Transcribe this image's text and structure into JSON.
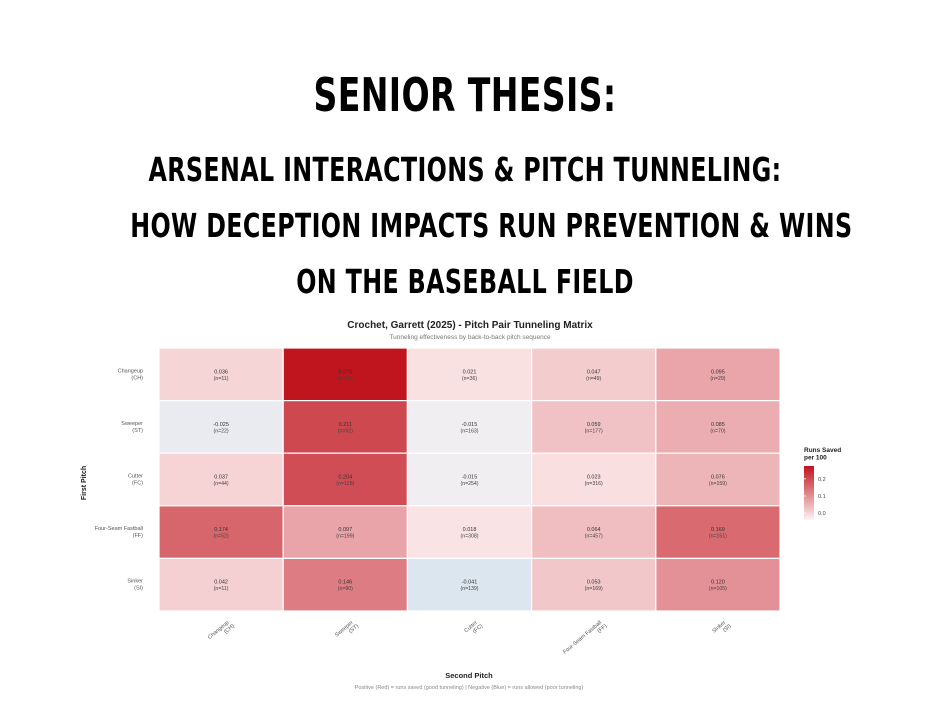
{
  "title_lines": [
    "SENIOR THESIS:",
    "ARSENAL INTERACTIONS & PITCH TUNNELING:",
    "HOW DECEPTION IMPACTS RUN PREVENTION & WINS",
    "ON THE BASEBALL FIELD"
  ],
  "chart_data": {
    "type": "heatmap",
    "title": "Crochet, Garrett (2025) - Pitch Pair Tunneling Matrix",
    "subtitle": "Tunneling effectiveness by back-to-back pitch sequence",
    "xlabel": "Second Pitch",
    "ylabel": "First Pitch",
    "caption": "Positive (Red) = runs saved (good tunneling) | Negative (Blue) = runs allowed (poor tunneling)",
    "rows": [
      {
        "name": "Changeup",
        "code": "(CH)"
      },
      {
        "name": "Sweeper",
        "code": "(ST)"
      },
      {
        "name": "Cutter",
        "code": "(FC)"
      },
      {
        "name": "Four-Seam Fastball",
        "code": "(FF)"
      },
      {
        "name": "Sinker",
        "code": "(SI)"
      }
    ],
    "columns": [
      {
        "name": "Changeup",
        "code": "(CH)"
      },
      {
        "name": "Sweeper",
        "code": "(ST)"
      },
      {
        "name": "Cutter",
        "code": "(FC)"
      },
      {
        "name": "Four-Seam Fastball",
        "code": "(FF)"
      },
      {
        "name": "Sinker",
        "code": "(SI)"
      }
    ],
    "values": [
      [
        "0.036",
        "0.275",
        "0.021",
        "0.047",
        "0.095"
      ],
      [
        "-0.025",
        "0.211",
        "-0.015",
        "0.059",
        "0.085"
      ],
      [
        "0.037",
        "0.204",
        "-0.015",
        "0.023",
        "0.076"
      ],
      [
        "0.174",
        "0.097",
        "0.018",
        "0.064",
        "0.169"
      ],
      [
        "0.042",
        "0.146",
        "-0.041",
        "0.053",
        "0.120"
      ]
    ],
    "counts": [
      [
        "(n=11)",
        "(n=15)",
        "(n=36)",
        "(n=49)",
        "(n=29)"
      ],
      [
        "(n=22)",
        "(n=92)",
        "(n=163)",
        "(n=177)",
        "(n=70)"
      ],
      [
        "(n=44)",
        "(n=128)",
        "(n=254)",
        "(n=316)",
        "(n=159)"
      ],
      [
        "(n=52)",
        "(n=199)",
        "(n=308)",
        "(n=457)",
        "(n=151)"
      ],
      [
        "(n=11)",
        "(n=90)",
        "(n=139)",
        "(n=169)",
        "(n=105)"
      ]
    ],
    "legend": {
      "title_lines": [
        "Runs Saved",
        "per 100"
      ],
      "ticks": [
        "0.2",
        "0.1",
        "0.0"
      ],
      "tick_values": [
        0.2,
        0.1,
        0.0
      ],
      "min": -0.04,
      "max": 0.275
    },
    "colors": {
      "high": "#c0141f",
      "mid": "#fef2f2",
      "low": "#dce6ef",
      "grid": "#ffffff"
    }
  }
}
